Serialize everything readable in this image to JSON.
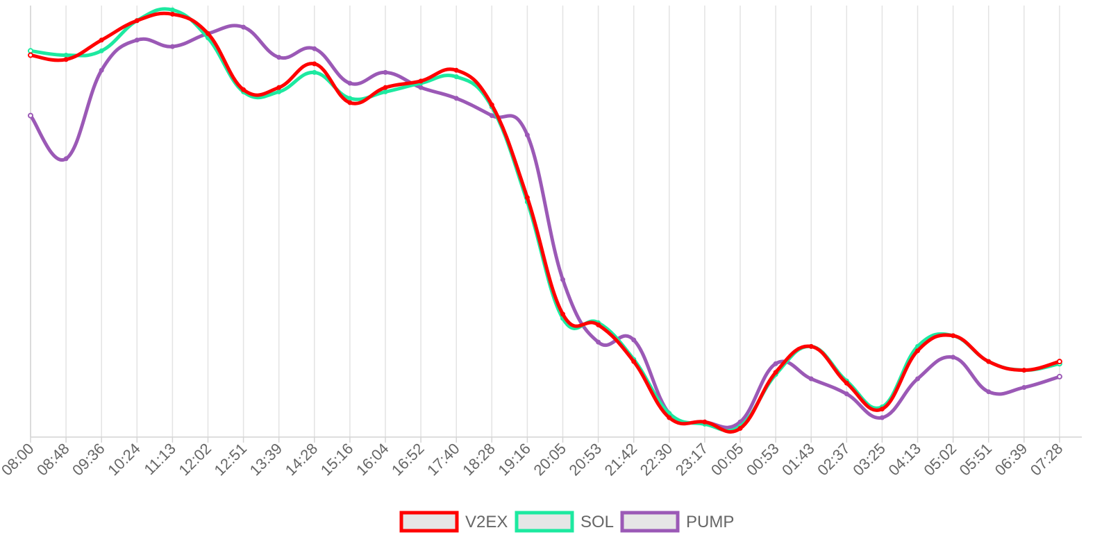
{
  "chart_data": {
    "type": "line",
    "title": "",
    "xlabel": "",
    "ylabel": "",
    "y_axis_labels_shown": false,
    "ylim": [
      0,
      100
    ],
    "grid": "vertical lines at each x tick",
    "legend_position": "bottom-center",
    "x_tick_labels": [
      "08:00",
      "08:48",
      "09:36",
      "10:24",
      "11:13",
      "12:02",
      "12:51",
      "13:39",
      "14:28",
      "15:16",
      "16:04",
      "16:52",
      "17:40",
      "18:28",
      "19:16",
      "20:05",
      "20:53",
      "21:42",
      "22:30",
      "23:17",
      "00:05",
      "00:53",
      "01:43",
      "02:37",
      "03:25",
      "04:13",
      "05:02",
      "05:51",
      "06:39",
      "07:28"
    ],
    "x": [
      "08:00",
      "08:48",
      "09:36",
      "10:24",
      "11:13",
      "12:02",
      "12:51",
      "13:39",
      "14:28",
      "15:16",
      "16:04",
      "16:52",
      "17:40",
      "18:28",
      "19:16",
      "20:05",
      "20:53",
      "21:42",
      "22:30",
      "23:17",
      "00:05",
      "00:53",
      "01:43",
      "02:37",
      "03:25",
      "04:13",
      "05:02",
      "05:51",
      "06:39",
      "07:28"
    ],
    "series": [
      {
        "name": "V2EX",
        "color": "#ff0000",
        "values": [
          88.5,
          87.5,
          92.0,
          96.5,
          98.0,
          93.5,
          80.5,
          81.0,
          86.5,
          77.5,
          81.0,
          82.5,
          85.0,
          77.0,
          55.5,
          28.5,
          26.0,
          17.5,
          4.5,
          3.5,
          2.0,
          15.0,
          21.0,
          12.5,
          6.5,
          20.0,
          23.5,
          17.5,
          15.5,
          17.5
        ]
      },
      {
        "name": "SOL",
        "color": "#1de9a0",
        "values": [
          89.5,
          88.5,
          89.5,
          96.5,
          99.0,
          92.5,
          80.0,
          80.0,
          84.5,
          78.5,
          80.0,
          82.0,
          83.5,
          76.5,
          54.5,
          27.5,
          26.5,
          18.0,
          5.5,
          3.0,
          2.5,
          14.5,
          21.0,
          13.0,
          7.0,
          21.0,
          23.5,
          17.5,
          15.5,
          17.0
        ]
      },
      {
        "name": "PUMP",
        "color": "#9b59b6",
        "values": [
          74.5,
          64.5,
          85.0,
          92.0,
          90.5,
          93.5,
          95.0,
          88.0,
          90.0,
          82.0,
          84.5,
          81.0,
          78.5,
          74.5,
          70.0,
          36.5,
          22.0,
          22.5,
          5.5,
          3.5,
          3.5,
          17.0,
          13.5,
          10.0,
          4.5,
          13.5,
          18.5,
          10.5,
          11.5,
          14.0
        ]
      }
    ]
  }
}
